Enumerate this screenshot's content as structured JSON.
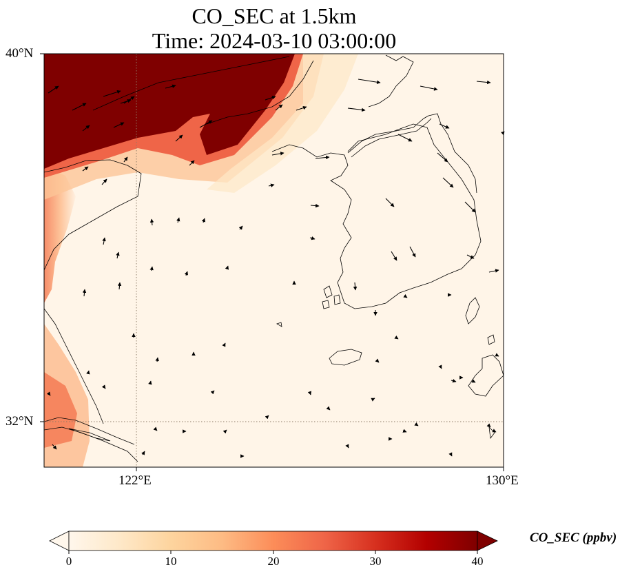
{
  "title_line1": "CO_SEC at 1.5km",
  "title_line2": "Time: 2024-03-10 03:00:00",
  "map": {
    "variable": "CO_SEC",
    "height": "1.5km",
    "time": "2024-03-10 03:00:00",
    "lon_range": [
      118,
      130
    ],
    "lat_range": [
      31,
      40
    ],
    "gridlines": {
      "lons": [
        122
      ],
      "lats": [
        32
      ],
      "style": "dotted"
    },
    "lat_ticks": [
      "40°N",
      "32°N"
    ],
    "lon_ticks": [
      "122°E",
      "130°E"
    ],
    "features": [
      "coastlines",
      "wind-vectors",
      "shaded-concentration"
    ],
    "colormap": "OrRd"
  },
  "colorbar": {
    "label": "CO_SEC (ppbv)",
    "ticks": [
      "0",
      "10",
      "20",
      "30",
      "40"
    ],
    "min": 0,
    "max": 40,
    "extend": "both",
    "colors": [
      "#fff7ec",
      "#fee8c8",
      "#fdd49e",
      "#fdbb84",
      "#fc8d59",
      "#ef6548",
      "#d7301f",
      "#b30000",
      "#7f0000"
    ]
  }
}
